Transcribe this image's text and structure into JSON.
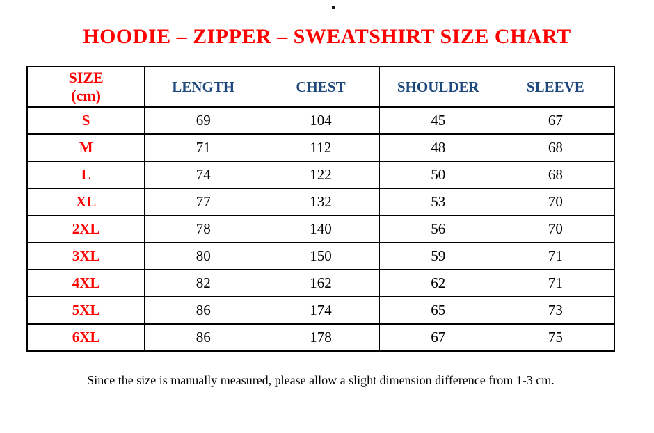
{
  "page": {
    "title": "HOODIE – ZIPPER – SWEATSHIRT SIZE CHART",
    "note": "Since the size is manually measured, please allow a slight dimension difference from 1-3 cm."
  },
  "colors": {
    "title_red": "#ff0000",
    "header_blue": "#1f497d",
    "body_text": "#000000",
    "border": "#000000",
    "background": "#ffffff"
  },
  "size_chart": {
    "corner_header": {
      "line1": "SIZE",
      "line2": "(cm)"
    },
    "measurement_columns": [
      "LENGTH",
      "CHEST",
      "SHOULDER",
      "SLEEVE"
    ],
    "row_keys": [
      "size",
      "length",
      "chest",
      "shoulder",
      "sleeve"
    ],
    "rows": [
      {
        "size": "S",
        "length": "69",
        "chest": "104",
        "shoulder": "45",
        "sleeve": "67"
      },
      {
        "size": "M",
        "length": "71",
        "chest": "112",
        "shoulder": "48",
        "sleeve": "68"
      },
      {
        "size": "L",
        "length": "74",
        "chest": "122",
        "shoulder": "50",
        "sleeve": "68"
      },
      {
        "size": "XL",
        "length": "77",
        "chest": "132",
        "shoulder": "53",
        "sleeve": "70"
      },
      {
        "size": "2XL",
        "length": "78",
        "chest": "140",
        "shoulder": "56",
        "sleeve": "70"
      },
      {
        "size": "3XL",
        "length": "80",
        "chest": "150",
        "shoulder": "59",
        "sleeve": "71"
      },
      {
        "size": "4XL",
        "length": "82",
        "chest": "162",
        "shoulder": "62",
        "sleeve": "71"
      },
      {
        "size": "5XL",
        "length": "86",
        "chest": "174",
        "shoulder": "65",
        "sleeve": "73"
      },
      {
        "size": "6XL",
        "length": "86",
        "chest": "178",
        "shoulder": "67",
        "sleeve": "75"
      }
    ]
  },
  "chart_data": {
    "type": "table",
    "title": "HOODIE – ZIPPER – SWEATSHIRT SIZE CHART",
    "columns": [
      "SIZE (cm)",
      "LENGTH",
      "CHEST",
      "SHOULDER",
      "SLEEVE"
    ],
    "rows": [
      [
        "S",
        69,
        104,
        45,
        67
      ],
      [
        "M",
        71,
        112,
        48,
        68
      ],
      [
        "L",
        74,
        122,
        50,
        68
      ],
      [
        "XL",
        77,
        132,
        53,
        70
      ],
      [
        "2XL",
        78,
        140,
        56,
        70
      ],
      [
        "3XL",
        80,
        150,
        59,
        71
      ],
      [
        "4XL",
        82,
        162,
        62,
        71
      ],
      [
        "5XL",
        86,
        174,
        65,
        73
      ],
      [
        "6XL",
        86,
        178,
        67,
        75
      ]
    ],
    "footnote": "Since the size is manually measured, please allow a slight dimension difference from 1-3 cm.",
    "units": "cm"
  }
}
